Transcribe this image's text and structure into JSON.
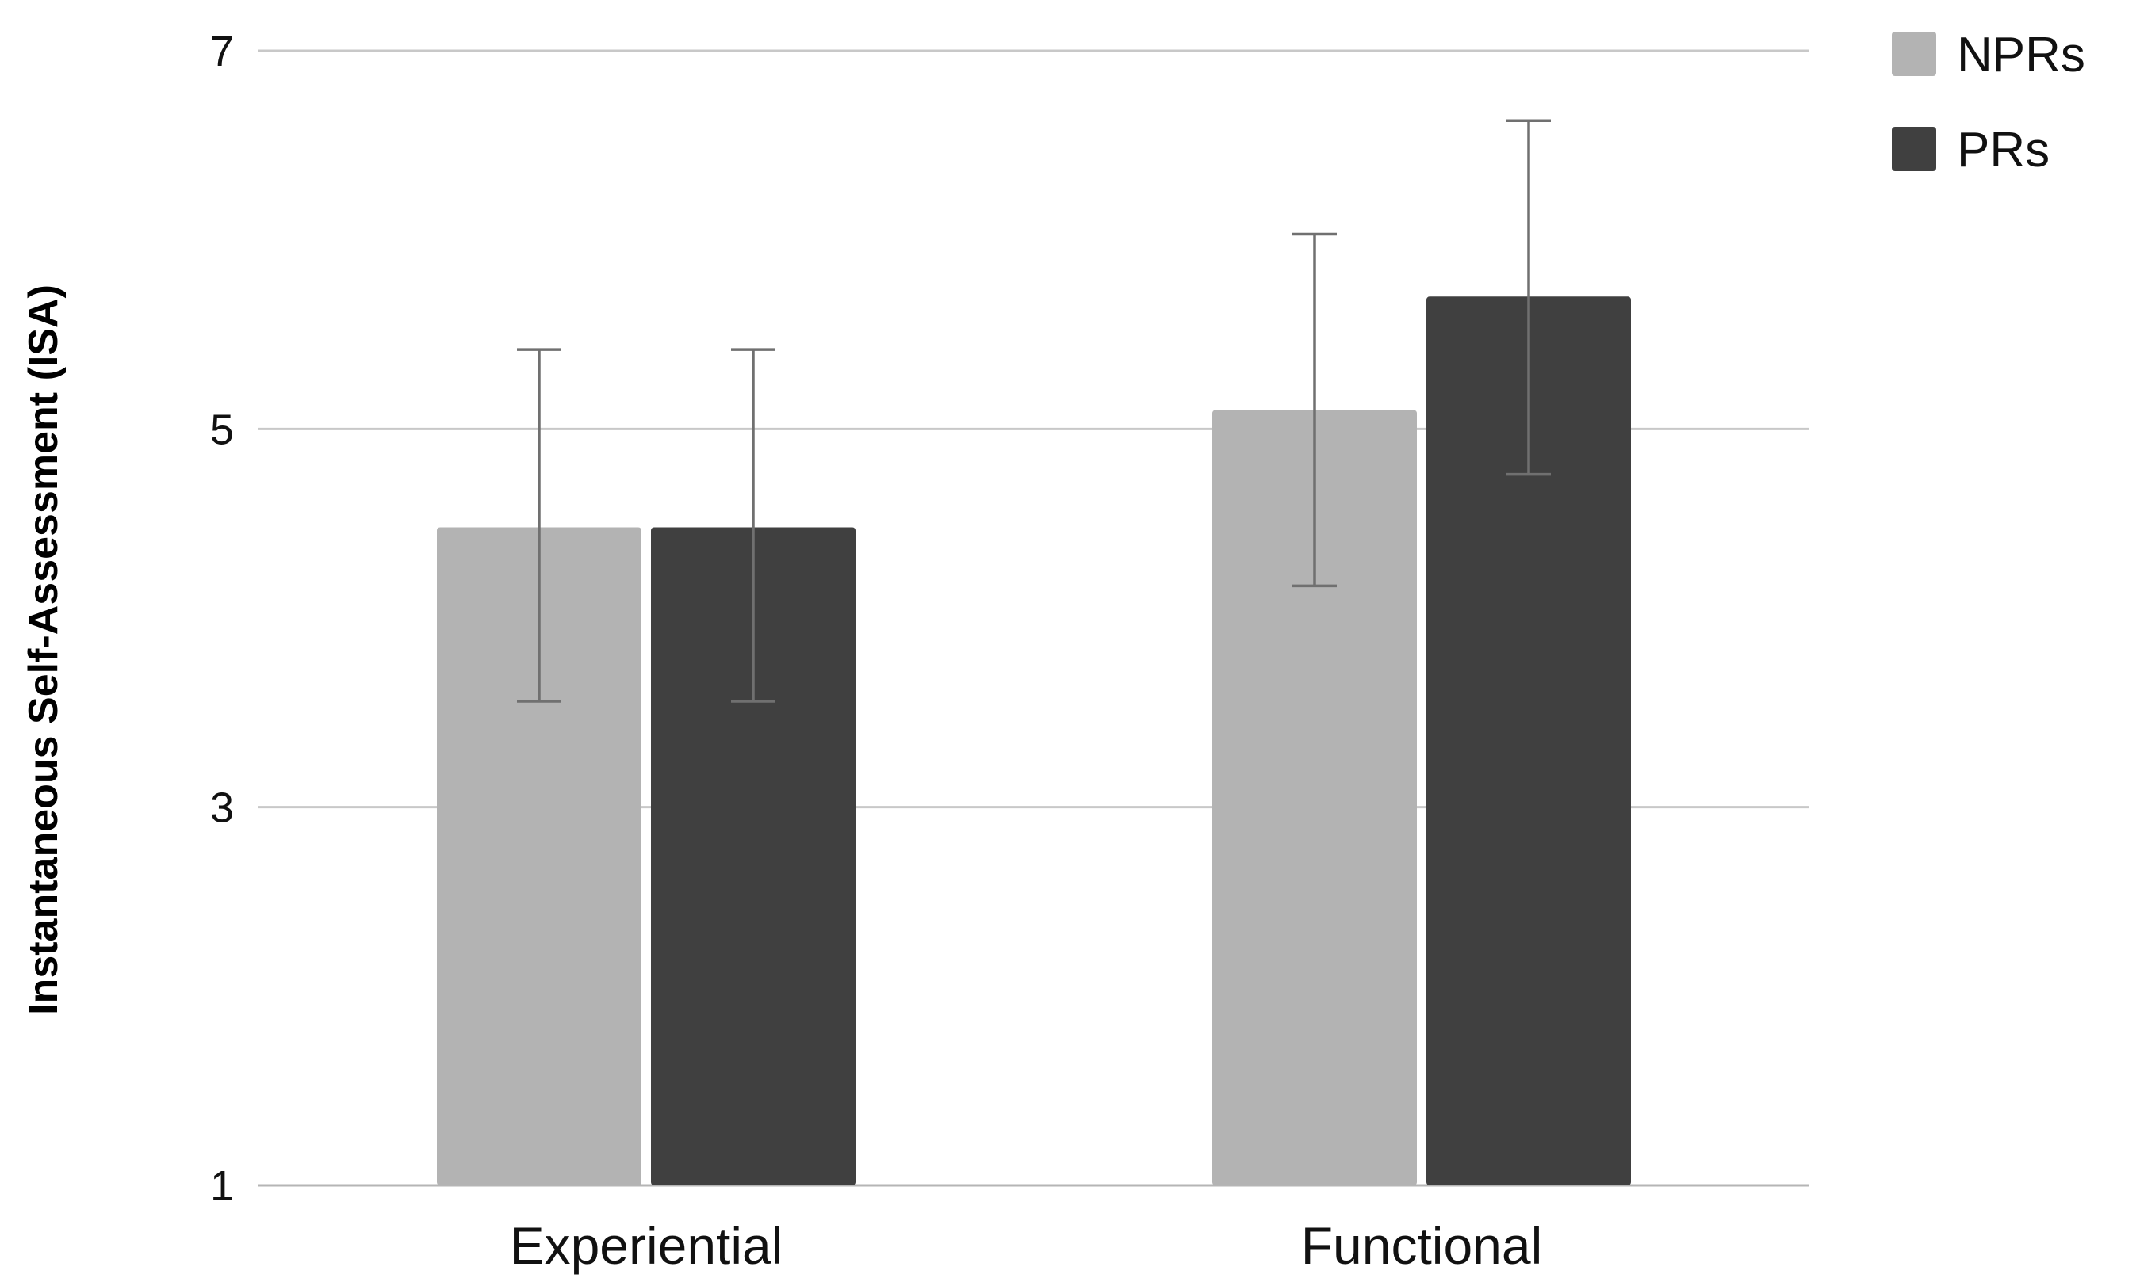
{
  "chart_data": {
    "type": "bar",
    "title": "",
    "xlabel": "",
    "ylabel": "Instantaneous Self-Assessment (ISA)",
    "ylim": [
      1,
      7
    ],
    "yticks": [
      1,
      3,
      5,
      7
    ],
    "ytick_labels": [
      "1",
      "3",
      "5",
      "7"
    ],
    "grid": true,
    "legend_position": "top-right",
    "categories": [
      "Experiential",
      "Functional"
    ],
    "series": [
      {
        "name": "NPRs",
        "color": "#b3b3b3",
        "values": [
          4.48,
          5.1
        ],
        "error_low": [
          3.56,
          4.17
        ],
        "error_high": [
          5.42,
          6.03
        ]
      },
      {
        "name": "PRs",
        "color": "#404040",
        "values": [
          4.48,
          5.7
        ],
        "error_low": [
          3.56,
          4.76
        ],
        "error_high": [
          5.42,
          6.63
        ]
      }
    ]
  }
}
